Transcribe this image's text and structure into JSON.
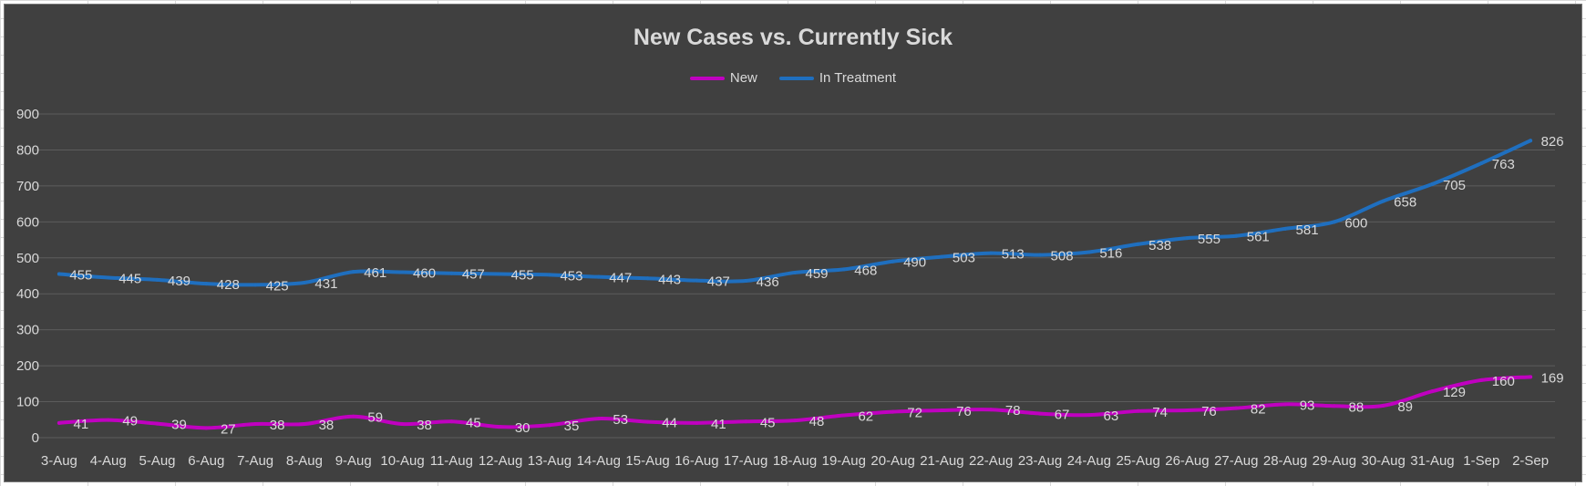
{
  "chart_data": {
    "type": "line",
    "title": "New Cases vs. Currently Sick",
    "xlabel": "",
    "ylabel": "",
    "ylim": [
      0,
      900
    ],
    "yticks": [
      0,
      100,
      200,
      300,
      400,
      500,
      600,
      700,
      800,
      900
    ],
    "grid": true,
    "legend_position": "top",
    "categories": [
      "3-Aug",
      "4-Aug",
      "5-Aug",
      "6-Aug",
      "7-Aug",
      "8-Aug",
      "9-Aug",
      "10-Aug",
      "11-Aug",
      "12-Aug",
      "13-Aug",
      "14-Aug",
      "15-Aug",
      "16-Aug",
      "17-Aug",
      "18-Aug",
      "19-Aug",
      "20-Aug",
      "21-Aug",
      "22-Aug",
      "23-Aug",
      "24-Aug",
      "25-Aug",
      "26-Aug",
      "27-Aug",
      "28-Aug",
      "29-Aug",
      "30-Aug",
      "31-Aug",
      "1-Sep",
      "2-Sep"
    ],
    "series": [
      {
        "name": "New",
        "color": "#c000c0",
        "values": [
          41,
          49,
          39,
          27,
          38,
          38,
          59,
          38,
          45,
          30,
          35,
          53,
          44,
          41,
          45,
          48,
          62,
          72,
          76,
          78,
          67,
          63,
          74,
          76,
          82,
          93,
          88,
          89,
          129,
          160,
          169
        ]
      },
      {
        "name": "In Treatment",
        "color": "#1f6fbf",
        "values": [
          455,
          445,
          439,
          428,
          425,
          431,
          461,
          460,
          457,
          455,
          453,
          447,
          443,
          437,
          436,
          459,
          468,
          490,
          503,
          513,
          508,
          516,
          538,
          555,
          561,
          581,
          600,
          658,
          705,
          763,
          826
        ]
      }
    ]
  }
}
